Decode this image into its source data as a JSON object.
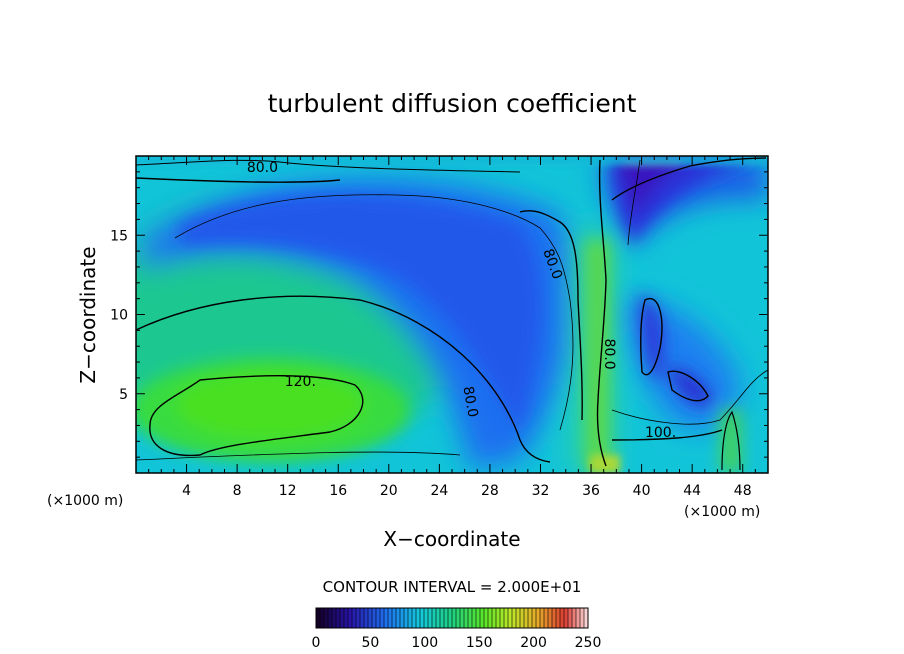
{
  "chart_data": {
    "type": "heatmap",
    "title": "turbulent diffusion coefficient",
    "xlabel": "X−coordinate",
    "ylabel": "Z−coordinate",
    "x_unit": "(×1000 m)",
    "y_unit": "(×1000 m)",
    "xlim": [
      0,
      50
    ],
    "ylim": [
      0,
      20
    ],
    "x_ticks": [
      "4",
      "8",
      "12",
      "16",
      "20",
      "24",
      "28",
      "32",
      "36",
      "40",
      "44",
      "48"
    ],
    "y_ticks": [
      "5",
      "10",
      "15"
    ],
    "contour_interval_label": "CONTOUR INTERVAL = 2.000E+01",
    "contour_interval": 20,
    "contour_labels": [
      {
        "text": "80.0",
        "x": 10,
        "z": 19.3
      },
      {
        "text": "120.",
        "x": 13,
        "z": 5.8
      },
      {
        "text": "80.0",
        "x": 33,
        "z": 13.2
      },
      {
        "text": "80.0",
        "x": 26.5,
        "z": 4.5
      },
      {
        "text": "80.0",
        "x": 37.5,
        "z": 7.5
      },
      {
        "text": "100.",
        "x": 41.5,
        "z": 2.6
      }
    ],
    "colorbar": {
      "min": 0,
      "max": 250,
      "ticks": [
        "0",
        "50",
        "100",
        "150",
        "200",
        "250"
      ]
    },
    "field_description_values": {
      "lower_left_maximum": 125,
      "upper_left_plume": 60,
      "upper_right_minimum": 20,
      "right_lobe_minimum": 40,
      "background": 90
    }
  }
}
